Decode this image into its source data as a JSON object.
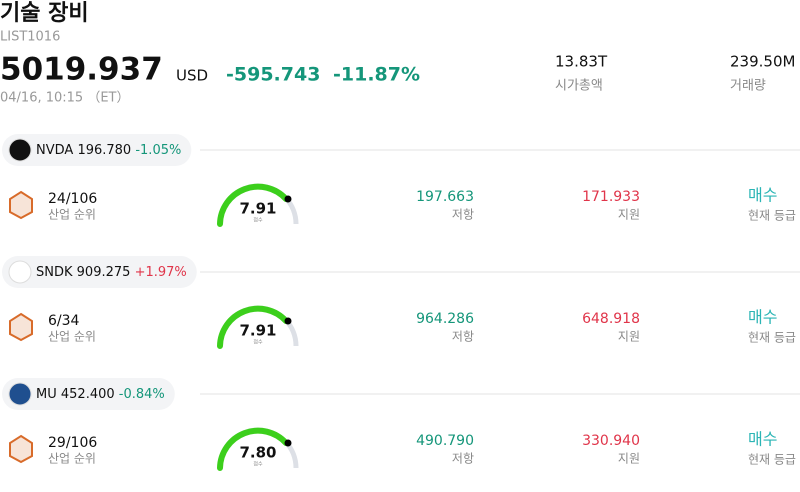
{
  "header": {
    "title": "기술 장비",
    "code": "LIST1016",
    "price": "5019.937",
    "currency": "USD",
    "change": "-595.743",
    "change_pct": "-11.87%",
    "time": "04/16, 10:15 （ET）",
    "stats": [
      {
        "value": "13.83T",
        "label": "시가총액"
      },
      {
        "value": "239.50M",
        "label": "거래량"
      }
    ]
  },
  "stocks": [
    {
      "ticker": "NVDA",
      "price": "196.780",
      "change": "-1.05%",
      "rank": "24/106",
      "rank_label": "산업 순위",
      "score": "7.91",
      "score_label": "점수",
      "resistance": "197.663",
      "resistance_label": "저항",
      "support": "171.933",
      "support_label": "지원",
      "rating": "매수",
      "rating_label": "현재 등급"
    },
    {
      "ticker": "SNDK",
      "price": "909.275",
      "change": "+1.97%",
      "rank": "6/34",
      "rank_label": "산업 순위",
      "score": "7.91",
      "score_label": "점수",
      "resistance": "964.286",
      "resistance_label": "저항",
      "support": "648.918",
      "support_label": "지원",
      "rating": "매수",
      "rating_label": "현재 등급"
    },
    {
      "ticker": "MU",
      "price": "452.400",
      "change": "-0.84%",
      "rank": "29/106",
      "rank_label": "산업 순위",
      "score": "7.80",
      "score_label": "점수",
      "resistance": "490.790",
      "resistance_label": "저항",
      "support": "330.940",
      "support_label": "지원",
      "rating": "매수",
      "rating_label": "현재 등급"
    }
  ]
}
